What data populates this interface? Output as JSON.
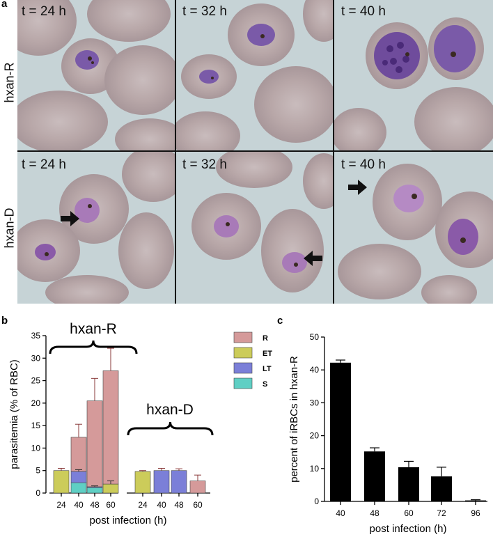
{
  "panel_a": {
    "letter": "a",
    "rows": [
      {
        "label": "hxan-R",
        "tiles": [
          "t = 24 h",
          "t = 32 h",
          "t = 40 h"
        ]
      },
      {
        "label": "hxan-D",
        "tiles": [
          "t = 24 h",
          "t = 32 h",
          "t = 40 h"
        ]
      }
    ],
    "colors": {
      "background": "#c7d4d7",
      "rbc": "#b9a7a8",
      "parasite": "#7a5aa8",
      "hemozoin": "#3a2a22",
      "arrow": "#111111"
    }
  },
  "panel_b": {
    "letter": "b",
    "bracket_left_label": "hxan-R",
    "bracket_right_label": "hxan-D",
    "legend": [
      {
        "label": "R",
        "color": "#d59a9a"
      },
      {
        "label": "ET",
        "color": "#cccc5a"
      },
      {
        "label": "LT",
        "color": "#7b7fd8"
      },
      {
        "label": "S",
        "color": "#5fcfc4"
      }
    ]
  },
  "panel_c": {
    "letter": "c"
  },
  "chart_data": [
    {
      "type": "bar",
      "stacked": true,
      "ylabel": "parasitemia (% of RBC)",
      "xlabel": "post infection (h)",
      "ylim": [
        0,
        35
      ],
      "yticks": [
        "0",
        "5",
        "10",
        "15",
        "20",
        "25",
        "30",
        "35"
      ],
      "groups": [
        "hxan-R",
        "hxan-D"
      ],
      "categories": [
        "24",
        "40",
        "48",
        "60",
        "24",
        "40",
        "48",
        "60"
      ],
      "series": [
        {
          "name": "S",
          "values": [
            0,
            2.3,
            1.2,
            0,
            0,
            0,
            0,
            0
          ]
        },
        {
          "name": "LT",
          "values": [
            0,
            2.5,
            0.2,
            0,
            0,
            5.0,
            5.0,
            0
          ]
        },
        {
          "name": "ET",
          "values": [
            5.0,
            0,
            0,
            2.0,
            4.8,
            0,
            0,
            0
          ]
        },
        {
          "name": "R",
          "values": [
            0,
            7.6,
            19.1,
            25.2,
            0,
            0,
            0,
            2.7
          ]
        }
      ],
      "errors": [
        0.5,
        2.9,
        5.0,
        5.0,
        0.2,
        0.5,
        0.4,
        1.3
      ],
      "inner_errors": [
        null,
        0.4,
        0.2,
        0.7,
        null,
        null,
        null,
        null
      ]
    },
    {
      "type": "bar",
      "ylabel": "percent of iRBCs in hxan-R",
      "xlabel": "post infection (h)",
      "ylim": [
        0,
        50
      ],
      "yticks": [
        "0",
        "10",
        "20",
        "30",
        "40",
        "50"
      ],
      "categories": [
        "40",
        "48",
        "60",
        "72",
        "96"
      ],
      "values": [
        42.2,
        15.2,
        10.4,
        7.6,
        0.3
      ],
      "errors": [
        0.8,
        1.1,
        1.8,
        2.8,
        0.2
      ]
    }
  ]
}
